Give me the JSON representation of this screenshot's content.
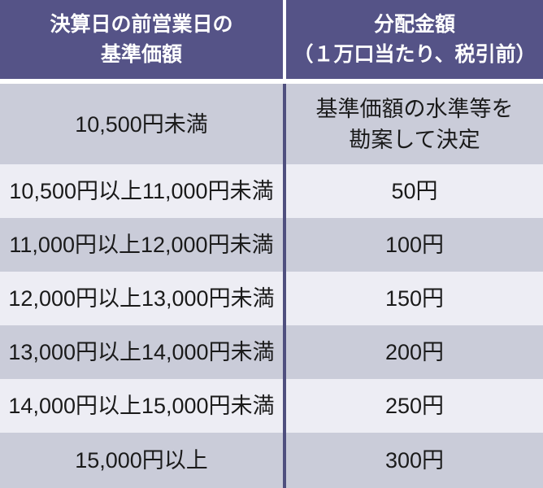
{
  "table": {
    "header": {
      "price_col_lines": [
        "決算日の前営業日の",
        "基準価額"
      ],
      "amount_col_lines": [
        "分配金額",
        "（１万口当たり、税引前）"
      ]
    },
    "rows": [
      {
        "range": "10,500円未満",
        "amount_lines": [
          "基準価額の水準等を",
          "勘案して決定"
        ]
      },
      {
        "range": "10,500円以上11,000円未満",
        "amount_lines": [
          "50円"
        ]
      },
      {
        "range": "11,000円以上12,000円未満",
        "amount_lines": [
          "100円"
        ]
      },
      {
        "range": "12,000円以上13,000円未満",
        "amount_lines": [
          "150円"
        ]
      },
      {
        "range": "13,000円以上14,000円未満",
        "amount_lines": [
          "200円"
        ]
      },
      {
        "range": "14,000円以上15,000円未満",
        "amount_lines": [
          "250円"
        ]
      },
      {
        "range": "15,000円以上",
        "amount_lines": [
          "300円"
        ]
      }
    ]
  },
  "colors": {
    "header_bg": "#555387",
    "header_text": "#ffffff",
    "row_dark_bg": "#caccd9",
    "row_light_bg": "#ededf4",
    "divider": "#4f4f7e",
    "body_text": "#1a1a1a",
    "gap": "#ffffff"
  },
  "chart_data": {
    "type": "table",
    "columns": [
      "決算日の前営業日の基準価額",
      "分配金額（１万口当たり、税引前）"
    ],
    "rows": [
      [
        "10,500円未満",
        "基準価額の水準等を勘案して決定"
      ],
      [
        "10,500円以上11,000円未満",
        "50円"
      ],
      [
        "11,000円以上12,000円未満",
        "100円"
      ],
      [
        "12,000円以上13,000円未満",
        "150円"
      ],
      [
        "13,000円以上14,000円未満",
        "200円"
      ],
      [
        "14,000円以上15,000円未満",
        "250円"
      ],
      [
        "15,000円以上",
        "300円"
      ]
    ]
  }
}
